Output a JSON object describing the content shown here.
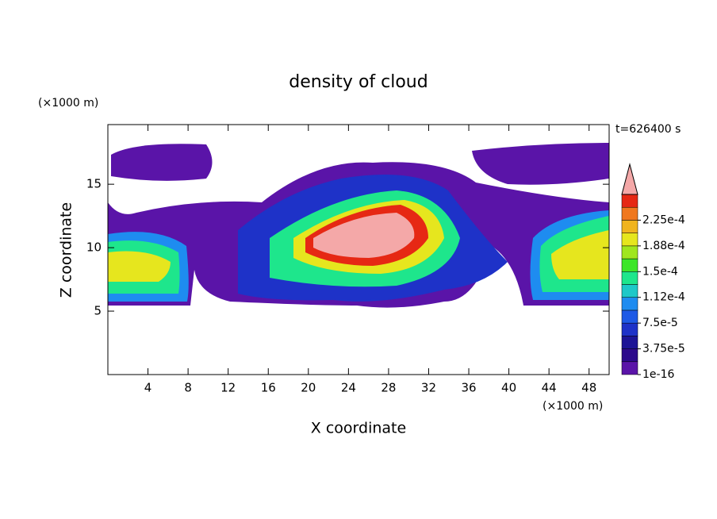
{
  "chart_data": {
    "type": "contour",
    "title": "density of cloud",
    "x_label": "X coordinate",
    "y_label": "Z coordinate",
    "x_unit": "(×1000 m)",
    "y_unit": "(×1000 m)",
    "time_label": "t=626400 s",
    "xlim": [
      0,
      50
    ],
    "ylim": [
      0,
      19.7
    ],
    "xticks": [
      4,
      8,
      12,
      16,
      20,
      24,
      28,
      32,
      36,
      40,
      44,
      48
    ],
    "yticks": [
      5,
      10,
      15
    ],
    "colorbar": {
      "colors": [
        "#5a14a8",
        "#2c0a8c",
        "#1c1496",
        "#1e32c8",
        "#1e5ae6",
        "#1e8cf0",
        "#1ec8c8",
        "#1ee68c",
        "#3ce628",
        "#a0e61e",
        "#e6e61e",
        "#f0b41e",
        "#f0781e",
        "#e62814"
      ],
      "over_color": "#f4a8a8",
      "ticks": [
        {
          "value": 1e-16,
          "label": "1e-16"
        },
        {
          "value": 3.75e-05,
          "label": "3.75e-5"
        },
        {
          "value": 7.5e-05,
          "label": "7.5e-5"
        },
        {
          "value": 0.000112,
          "label": "1.12e-4"
        },
        {
          "value": 0.00015,
          "label": "1.5e-4"
        },
        {
          "value": 0.000188,
          "label": "1.88e-4"
        },
        {
          "value": 0.000225,
          "label": "2.25e-4"
        }
      ]
    }
  }
}
